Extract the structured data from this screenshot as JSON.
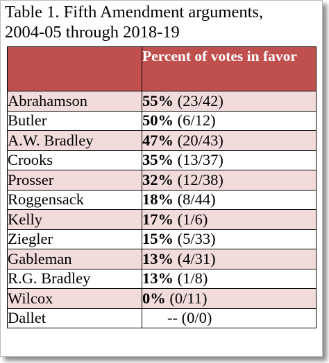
{
  "title": {
    "line1": "Table 1.  Fifth Amendment arguments,",
    "line2": "2004-05 through 2018-19"
  },
  "header": {
    "name_col": "",
    "votes_col": "Percent of votes in favor"
  },
  "colors": {
    "header_bg": "#c0504d",
    "header_text": "#ffffff",
    "shaded_row": "#f2dcdb",
    "plain_row": "#ffffff"
  },
  "rows": [
    {
      "name": "Abrahamson",
      "percent": "55%",
      "count": "(23/42)"
    },
    {
      "name": "Butler",
      "percent": "50%",
      "count": "(6/12)"
    },
    {
      "name": "A.W. Bradley",
      "percent": "47%",
      "count": "(20/43)"
    },
    {
      "name": "Crooks",
      "percent": "35%",
      "count": "(13/37)"
    },
    {
      "name": "Prosser",
      "percent": "32%",
      "count": "(12/38)"
    },
    {
      "name": "Roggensack",
      "percent": "18%",
      "count": "(8/44)"
    },
    {
      "name": "Kelly",
      "percent": "17%",
      "count": "(1/6)"
    },
    {
      "name": "Ziegler",
      "percent": "15%",
      "count": "(5/33)"
    },
    {
      "name": "Gableman",
      "percent": "13%",
      "count": "(4/31)"
    },
    {
      "name": "R.G. Bradley",
      "percent": "13%",
      "count": "(1/8)"
    },
    {
      "name": "Wilcox",
      "percent": "0%",
      "count": "(0/11)"
    },
    {
      "name": "Dallet",
      "percent": "--",
      "count": "(0/0)"
    }
  ]
}
